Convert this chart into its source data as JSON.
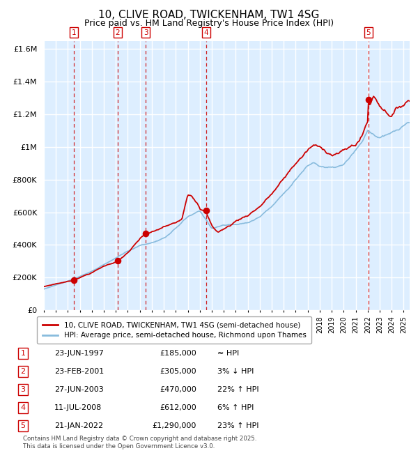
{
  "title": "10, CLIVE ROAD, TWICKENHAM, TW1 4SG",
  "subtitle": "Price paid vs. HM Land Registry's House Price Index (HPI)",
  "sales": [
    {
      "num": 1,
      "date": "23-JUN-1997",
      "year": 1997.48,
      "price": 185000,
      "hpi_rel": "≈ HPI"
    },
    {
      "num": 2,
      "date": "23-FEB-2001",
      "year": 2001.15,
      "price": 305000,
      "hpi_rel": "3% ↓ HPI"
    },
    {
      "num": 3,
      "date": "27-JUN-2003",
      "year": 2003.49,
      "price": 470000,
      "hpi_rel": "22% ↑ HPI"
    },
    {
      "num": 4,
      "date": "11-JUL-2008",
      "year": 2008.53,
      "price": 612000,
      "hpi_rel": "6% ↑ HPI"
    },
    {
      "num": 5,
      "date": "21-JAN-2022",
      "year": 2022.06,
      "price": 1290000,
      "hpi_rel": "23% ↑ HPI"
    }
  ],
  "legend_red": "10, CLIVE ROAD, TWICKENHAM, TW1 4SG (semi-detached house)",
  "legend_blue": "HPI: Average price, semi-detached house, Richmond upon Thames",
  "footnote": "Contains HM Land Registry data © Crown copyright and database right 2025.\nThis data is licensed under the Open Government Licence v3.0.",
  "ylim": [
    0,
    1650000
  ],
  "xlim_start": 1995,
  "xlim_end": 2025.5,
  "red_color": "#cc0000",
  "blue_color": "#88bbdd",
  "bg_color": "#ddeeff",
  "grid_color": "#ffffff",
  "dashed_color": "#cc0000",
  "title_fontsize": 11,
  "subtitle_fontsize": 9,
  "hpi_anchors_t": [
    1995.0,
    1996.0,
    1997.5,
    1998.5,
    1999.5,
    2001.0,
    2002.0,
    2003.0,
    2004.5,
    2005.5,
    2007.0,
    2008.0,
    2009.0,
    2010.0,
    2011.0,
    2012.0,
    2013.0,
    2014.0,
    2015.0,
    2016.0,
    2017.0,
    2017.5,
    2018.0,
    2019.0,
    2020.0,
    2021.0,
    2021.5,
    2022.0,
    2022.5,
    2023.0,
    2024.0,
    2025.0,
    2025.4
  ],
  "hpi_anchors_v": [
    130000,
    155000,
    190000,
    220000,
    255000,
    315000,
    355000,
    390000,
    420000,
    460000,
    560000,
    590000,
    490000,
    510000,
    510000,
    520000,
    560000,
    620000,
    700000,
    790000,
    870000,
    890000,
    870000,
    855000,
    870000,
    950000,
    990000,
    1060000,
    1040000,
    1020000,
    1040000,
    1080000,
    1100000
  ],
  "red_anchors_t": [
    1995.0,
    1996.0,
    1997.0,
    1997.48,
    1998.0,
    1999.0,
    2000.0,
    2001.0,
    2001.15,
    2002.0,
    2003.0,
    2003.49,
    2004.0,
    2004.5,
    2005.0,
    2006.0,
    2006.5,
    2007.0,
    2007.3,
    2007.8,
    2008.0,
    2008.53,
    2009.0,
    2009.5,
    2010.0,
    2010.5,
    2011.0,
    2012.0,
    2013.0,
    2014.0,
    2015.0,
    2016.0,
    2017.0,
    2017.5,
    2018.0,
    2019.0,
    2020.0,
    2021.0,
    2021.5,
    2022.0,
    2022.06,
    2022.5,
    2023.0,
    2023.5,
    2024.0,
    2024.5,
    2025.0,
    2025.4
  ],
  "red_anchors_v": [
    145000,
    163000,
    178000,
    185000,
    205000,
    235000,
    275000,
    305000,
    305000,
    360000,
    440000,
    470000,
    480000,
    490000,
    510000,
    530000,
    560000,
    720000,
    720000,
    680000,
    640000,
    612000,
    530000,
    490000,
    510000,
    530000,
    560000,
    600000,
    660000,
    740000,
    830000,
    930000,
    1010000,
    1040000,
    1020000,
    990000,
    1010000,
    1050000,
    1100000,
    1200000,
    1290000,
    1360000,
    1310000,
    1280000,
    1260000,
    1300000,
    1330000,
    1360000
  ]
}
